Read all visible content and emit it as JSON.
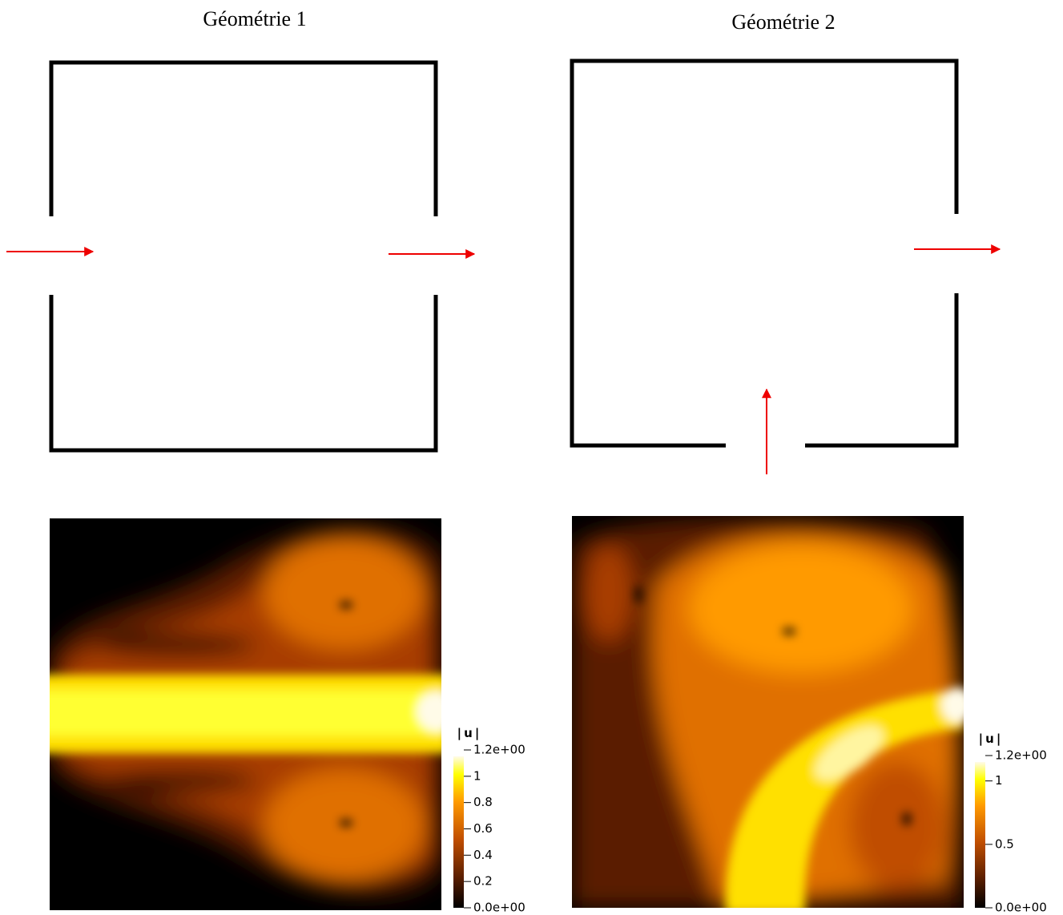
{
  "panels": [
    {
      "title": "Géométrie 1",
      "colorbar": {
        "label": "|u|",
        "lim": [
          0,
          1.2
        ],
        "ticks": [
          {
            "value": 1.2,
            "label": "1.2e+00"
          },
          1,
          0.8,
          0.6,
          0.4,
          0.2,
          {
            "value": 0,
            "label": "0.0e+00"
          }
        ]
      }
    },
    {
      "title": "Géométrie 2",
      "colorbar": {
        "label": "|u|",
        "lim": [
          0,
          1.2
        ],
        "ticks": [
          {
            "value": 1.2,
            "label": "1.2e+00"
          },
          1,
          0.5,
          {
            "value": 0,
            "label": "0.0e+00"
          }
        ]
      }
    }
  ]
}
